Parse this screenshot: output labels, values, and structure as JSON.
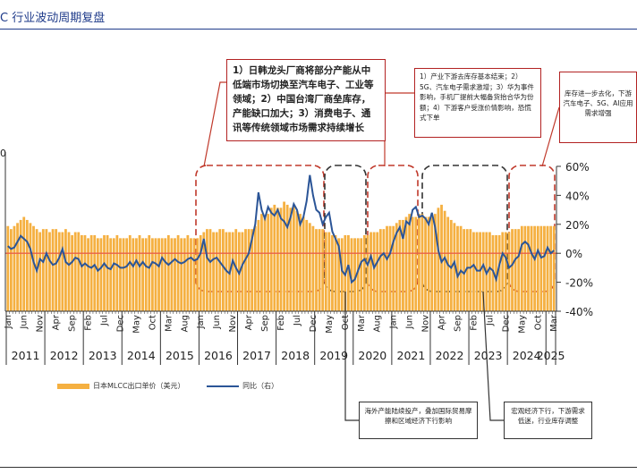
{
  "page": {
    "title": "C 行业波动周期复盘",
    "colors": {
      "bar": "#f5b041",
      "line": "#2b5597",
      "zero_line": "#e8614a",
      "box_red": "#c0392b",
      "box_dark": "#333333",
      "title": "#1f3b8a"
    }
  },
  "annotations": {
    "note1": "1）日韩龙头厂商将部分产能从中低端市场切换至汽车电子、工业等领域；2）中国台湾厂商垒库存，产能缺口加大；3）消费电子、通讯等传统领域市场需求持续增长",
    "note2": "1）产业下游去库存基本结束；2）5G、汽车电子需求激增；3）华为事件影响，手机厂提前大幅备货抬合华为份额；4）下游客户受涨价情影响，恐慌式下单",
    "note3": "库存进一步去化，下游汽车电子、5G、AI应用需求增强",
    "note4": "海外产能陆续投产，叠加国际贸易摩擦和区域经济下行影响",
    "note5": "宏观经济下行，下游需求低迷，行业库存调整"
  },
  "legend": {
    "bar_label": "日本MLCC出口单价（美元）",
    "line_label": "同比（右）"
  },
  "chart_data": {
    "type": "bar",
    "start": "2011-01",
    "end": "2025-03",
    "years": [
      "2011",
      "2012",
      "2013",
      "2014",
      "2015",
      "2016",
      "2017",
      "2018",
      "2019",
      "2020",
      "2021",
      "2022",
      "2023",
      "2024",
      "2025"
    ],
    "month_ticks": [
      "Jan",
      "Jun",
      "Nov",
      "Apr",
      "Sep",
      "Feb",
      "Jul",
      "Dec",
      "May",
      "Oct",
      "Mar",
      "Aug",
      "Jan",
      "Jun",
      "Nov",
      "Apr",
      "Sep",
      "Feb",
      "Jul",
      "Dec",
      "May",
      "Oct",
      "Mar",
      "Aug",
      "Jan",
      "Jun",
      "Nov",
      "Apr",
      "Sep",
      "Feb",
      "Jul",
      "Dec",
      "May",
      "Oct",
      "Mar"
    ],
    "y_right": {
      "ticks": [
        "60%",
        "40%",
        "20%",
        "0%",
        "-20%",
        "-40%"
      ],
      "range": [
        -40,
        60
      ]
    },
    "y_left_visible_tick": "0",
    "series": [
      {
        "name": "日本MLCC出口单价（美元）",
        "kind": "bar",
        "values": [
          28,
          27,
          28,
          29,
          30,
          31,
          30,
          29,
          28,
          27,
          26,
          27,
          27,
          26,
          27,
          27,
          26,
          26,
          27,
          26,
          25,
          26,
          26,
          25,
          25,
          24,
          25,
          25,
          24,
          24,
          25,
          25,
          24,
          24,
          25,
          24,
          24,
          24,
          25,
          24,
          24,
          25,
          24,
          24,
          25,
          24,
          24,
          24,
          24,
          24,
          25,
          24,
          24,
          25,
          24,
          24,
          25,
          24,
          24,
          24,
          25,
          26,
          27,
          27,
          26,
          26,
          27,
          27,
          26,
          26,
          26,
          27,
          26,
          26,
          27,
          27,
          27,
          28,
          30,
          32,
          31,
          32,
          34,
          35,
          34,
          34,
          36,
          35,
          34,
          35,
          33,
          32,
          31,
          30,
          29,
          28,
          27,
          27,
          27,
          26,
          26,
          25,
          25,
          24,
          24,
          25,
          25,
          24,
          24,
          24,
          24,
          25,
          25,
          26,
          26,
          26,
          27,
          27,
          28,
          28,
          28,
          29,
          30,
          30,
          31,
          32,
          31,
          31,
          32,
          32,
          31,
          31,
          31,
          32,
          34,
          35,
          33,
          31,
          30,
          29,
          28,
          28,
          27,
          27,
          27,
          26,
          26,
          26,
          26,
          26,
          26,
          25,
          25,
          25,
          26,
          26,
          26,
          27,
          27,
          27,
          28,
          28,
          28,
          28,
          28,
          28,
          28,
          28,
          28,
          28,
          28
        ]
      },
      {
        "name": "同比（右）",
        "kind": "line",
        "values": [
          5,
          3,
          4,
          8,
          12,
          10,
          8,
          3,
          -6,
          -12,
          -4,
          -6,
          0,
          -5,
          -8,
          -7,
          -3,
          3,
          -6,
          -8,
          -6,
          -3,
          -4,
          -9,
          -7,
          -9,
          -10,
          -8,
          -12,
          -10,
          -7,
          -10,
          -11,
          -7,
          -8,
          -10,
          -10,
          -9,
          -6,
          -9,
          -5,
          -9,
          -6,
          -9,
          -10,
          -6,
          -7,
          -9,
          -3,
          -6,
          -8,
          -6,
          -4,
          -6,
          -7,
          -6,
          -4,
          -3,
          -5,
          -4,
          0,
          10,
          -3,
          -6,
          -4,
          -3,
          -6,
          -9,
          -12,
          -14,
          -5,
          -10,
          -14,
          -8,
          -4,
          0,
          10,
          20,
          42,
          30,
          24,
          32,
          28,
          26,
          30,
          24,
          22,
          18,
          25,
          34,
          30,
          20,
          25,
          36,
          54,
          40,
          30,
          28,
          20,
          25,
          28,
          15,
          10,
          5,
          -12,
          -15,
          -8,
          -20,
          -18,
          -12,
          -6,
          -4,
          -8,
          -2,
          -10,
          -6,
          -2,
          0,
          -4,
          0,
          8,
          14,
          18,
          10,
          22,
          20,
          30,
          32,
          25,
          26,
          24,
          20,
          28,
          18,
          2,
          -6,
          -3,
          -8,
          -10,
          -6,
          -16,
          -12,
          -14,
          -10,
          -10,
          -8,
          -12,
          -12,
          -8,
          -14,
          -10,
          -12,
          -18,
          -8,
          0,
          -3,
          -10,
          -8,
          -4,
          -2,
          6,
          8,
          6,
          0,
          -4,
          2,
          -3,
          -2,
          4,
          0,
          2
        ]
      }
    ]
  }
}
